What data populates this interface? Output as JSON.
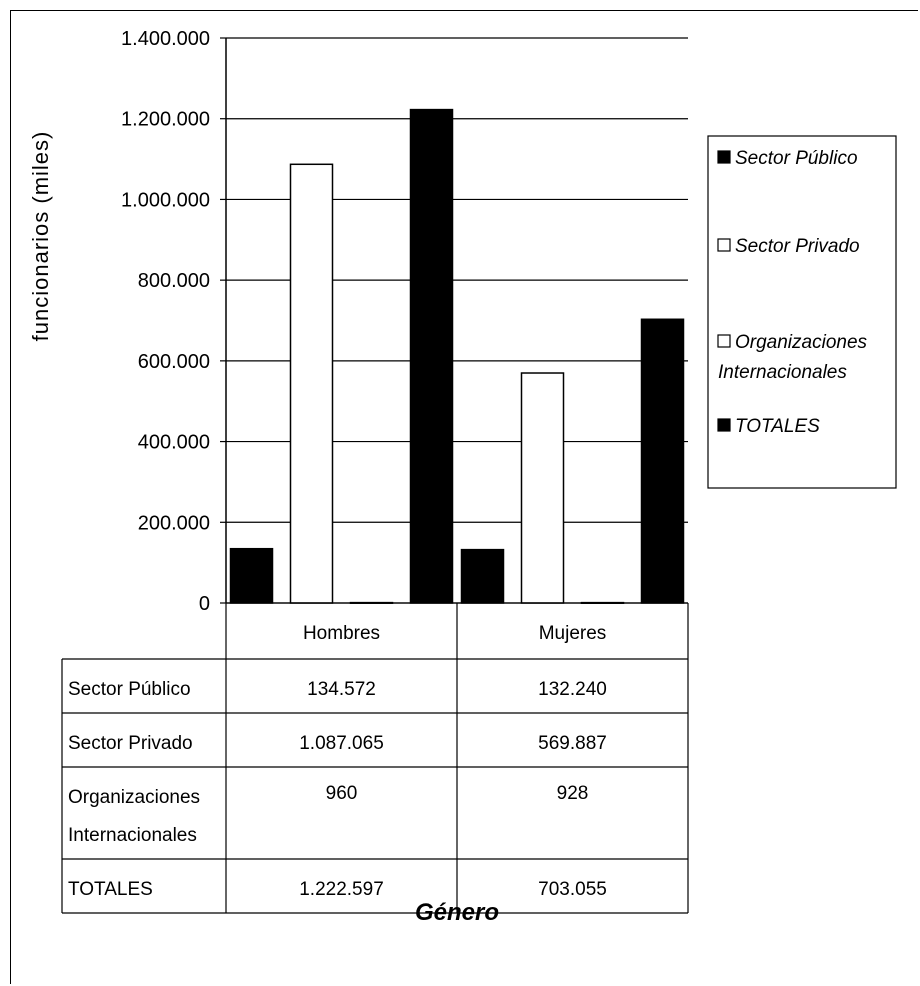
{
  "chart_data": {
    "type": "bar",
    "title": "",
    "xlabel": "Género",
    "ylabel": "funcionarios (miles)",
    "ylim": [
      0,
      1400000
    ],
    "yticks": [
      0,
      200000,
      400000,
      600000,
      800000,
      1000000,
      1200000,
      1400000
    ],
    "ytick_labels": [
      "0",
      "200.000",
      "400.000",
      "600.000",
      "800.000",
      "1.000.000",
      "1.200.000",
      "1.400.000"
    ],
    "grid": true,
    "legend_position": "right",
    "categories": [
      "Hombres",
      "Mujeres"
    ],
    "series": [
      {
        "name": "Sector Público",
        "values": [
          134572,
          132240
        ],
        "value_labels": [
          "134.572",
          "132.240"
        ],
        "color": "#000000",
        "table_label": [
          "Sector Público"
        ]
      },
      {
        "name": "Sector Privado",
        "values": [
          1087065,
          569887
        ],
        "value_labels": [
          "1.087.065",
          "569.887"
        ],
        "color": "#ffffff",
        "table_label": [
          "Sector Privado"
        ]
      },
      {
        "name": "Organizaciones Internacionales",
        "values": [
          960,
          928
        ],
        "value_labels": [
          "960",
          "928"
        ],
        "color": "#ffffff",
        "table_label": [
          "Organizaciones",
          "Internacionales"
        ],
        "legend_label": [
          "Organizaciones",
          "Internacionales"
        ]
      },
      {
        "name": "TOTALES",
        "values": [
          1222597,
          703055
        ],
        "value_labels": [
          "1.222.597",
          "703.055"
        ],
        "color": "#000000",
        "table_label": [
          "TOTALES"
        ]
      }
    ]
  }
}
